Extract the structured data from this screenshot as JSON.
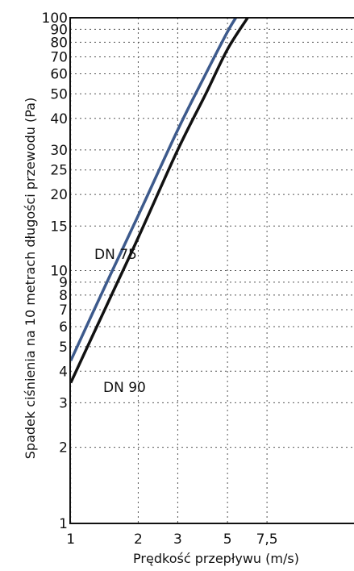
{
  "chart_data": {
    "type": "line",
    "title": "",
    "xlabel": "Prędkość przepływu (m/s)",
    "ylabel": "Spadek ciśnienia na 10 metrach długości przewodu (Pa)",
    "x_scale": "log",
    "y_scale": "log",
    "xlim": [
      0.85,
      8
    ],
    "ylim": [
      1,
      100
    ],
    "x_ticks": [
      "1",
      "2",
      "3",
      "5",
      "7,5"
    ],
    "x_tick_values": [
      1,
      2,
      3,
      5,
      7.5
    ],
    "y_ticks": [
      "1",
      "2",
      "3",
      "4",
      "5",
      "6",
      "7",
      "8",
      "9",
      "10",
      "15",
      "20",
      "25",
      "30",
      "40",
      "50",
      "60",
      "70",
      "80",
      "90",
      "100"
    ],
    "y_tick_values": [
      1,
      2,
      3,
      4,
      5,
      6,
      7,
      8,
      9,
      10,
      15,
      20,
      25,
      30,
      40,
      50,
      60,
      70,
      80,
      90,
      100
    ],
    "grid": true,
    "series": [
      {
        "name": "DN 75",
        "color": "#3d5a8c",
        "x": [
          1,
          1.5,
          2,
          3,
          4,
          5,
          5.45
        ],
        "y": [
          4.4,
          9.6,
          16.5,
          36,
          60,
          88,
          100
        ]
      },
      {
        "name": "DN 90",
        "color": "#111111",
        "x": [
          1,
          1.5,
          2,
          3,
          4,
          5,
          6.15
        ],
        "y": [
          3.6,
          7.8,
          13.5,
          30,
          50,
          75,
          100
        ]
      }
    ],
    "annotations": [
      {
        "text": "DN 75",
        "series": "DN 75"
      },
      {
        "text": "DN 90",
        "series": "DN 90"
      }
    ]
  }
}
